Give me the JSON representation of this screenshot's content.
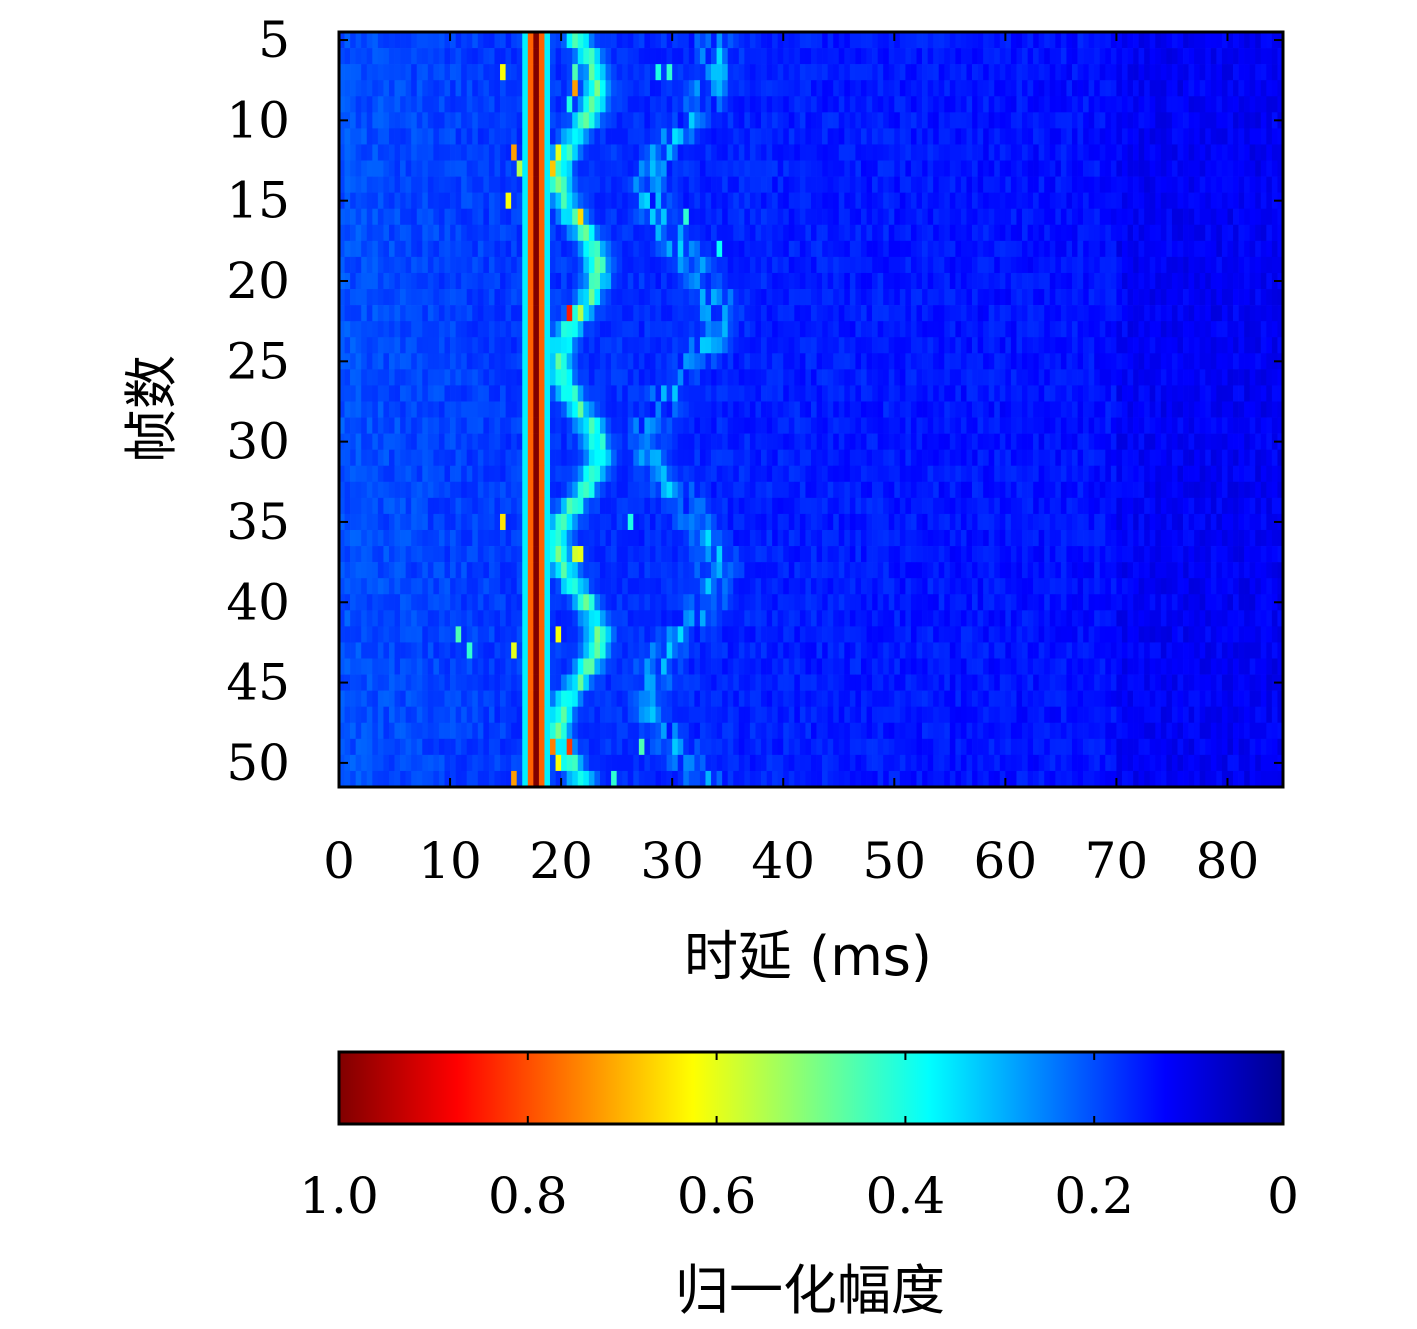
{
  "chart_data": {
    "type": "heatmap",
    "xlabel": "时延 (ms)",
    "ylabel": "帧数",
    "xlim": [
      0,
      85
    ],
    "ylim": [
      5,
      51
    ],
    "x_ticks": [
      "0",
      "10",
      "20",
      "30",
      "40",
      "50",
      "60",
      "70",
      "80"
    ],
    "y_ticks": [
      "5",
      "10",
      "15",
      "20",
      "25",
      "30",
      "35",
      "40",
      "45",
      "50"
    ],
    "colormap": "jet (reversed on colorbar)",
    "colorbar": {
      "label": "归一化幅度",
      "ticks": [
        "1.0",
        "0.8",
        "0.6",
        "0.4",
        "0.2",
        "0"
      ],
      "orientation": "horizontal",
      "placement": "bottom"
    },
    "features": {
      "dominant_path_delay_ms": 17.8,
      "dominant_path_amplitude": 1.0,
      "delay_resolution_ms": 0.5
    },
    "strong_peaks": [
      {
        "frame": 7,
        "delay_ms": 14.5,
        "value": 0.62
      },
      {
        "frame": 7,
        "delay_ms": 21,
        "value": 0.45
      },
      {
        "frame": 7,
        "delay_ms": 28.5,
        "value": 0.4
      },
      {
        "frame": 7,
        "delay_ms": 29.5,
        "value": 0.42
      },
      {
        "frame": 8,
        "delay_ms": 21,
        "value": 0.72
      },
      {
        "frame": 9,
        "delay_ms": 20.5,
        "value": 0.4
      },
      {
        "frame": 9,
        "delay_ms": 23,
        "value": 0.38
      },
      {
        "frame": 12,
        "delay_ms": 15.5,
        "value": 0.72
      },
      {
        "frame": 12,
        "delay_ms": 19.5,
        "value": 0.6
      },
      {
        "frame": 13,
        "delay_ms": 16,
        "value": 0.55
      },
      {
        "frame": 13,
        "delay_ms": 19,
        "value": 0.68
      },
      {
        "frame": 14,
        "delay_ms": 19.5,
        "value": 0.5
      },
      {
        "frame": 15,
        "delay_ms": 15,
        "value": 0.62
      },
      {
        "frame": 16,
        "delay_ms": 21.5,
        "value": 0.66
      },
      {
        "frame": 16,
        "delay_ms": 31,
        "value": 0.42
      },
      {
        "frame": 18,
        "delay_ms": 34,
        "value": 0.38
      },
      {
        "frame": 22,
        "delay_ms": 20.5,
        "value": 0.85
      },
      {
        "frame": 22,
        "delay_ms": 21.5,
        "value": 0.55
      },
      {
        "frame": 29,
        "delay_ms": 23,
        "value": 0.38
      },
      {
        "frame": 30,
        "delay_ms": 23.5,
        "value": 0.42
      },
      {
        "frame": 35,
        "delay_ms": 14.5,
        "value": 0.65
      },
      {
        "frame": 35,
        "delay_ms": 26,
        "value": 0.4
      },
      {
        "frame": 37,
        "delay_ms": 21,
        "value": 0.58
      },
      {
        "frame": 37,
        "delay_ms": 21.5,
        "value": 0.6
      },
      {
        "frame": 42,
        "delay_ms": 10.5,
        "value": 0.45
      },
      {
        "frame": 42,
        "delay_ms": 19.5,
        "value": 0.62
      },
      {
        "frame": 43,
        "delay_ms": 11.5,
        "value": 0.42
      },
      {
        "frame": 43,
        "delay_ms": 15.5,
        "value": 0.6
      },
      {
        "frame": 49,
        "delay_ms": 19,
        "value": 0.75
      },
      {
        "frame": 49,
        "delay_ms": 20.5,
        "value": 0.82
      },
      {
        "frame": 49,
        "delay_ms": 27,
        "value": 0.45
      },
      {
        "frame": 50,
        "delay_ms": 19.5,
        "value": 0.62
      },
      {
        "frame": 51,
        "delay_ms": 15.5,
        "value": 0.72
      },
      {
        "frame": 51,
        "delay_ms": 24.5,
        "value": 0.42
      }
    ]
  }
}
